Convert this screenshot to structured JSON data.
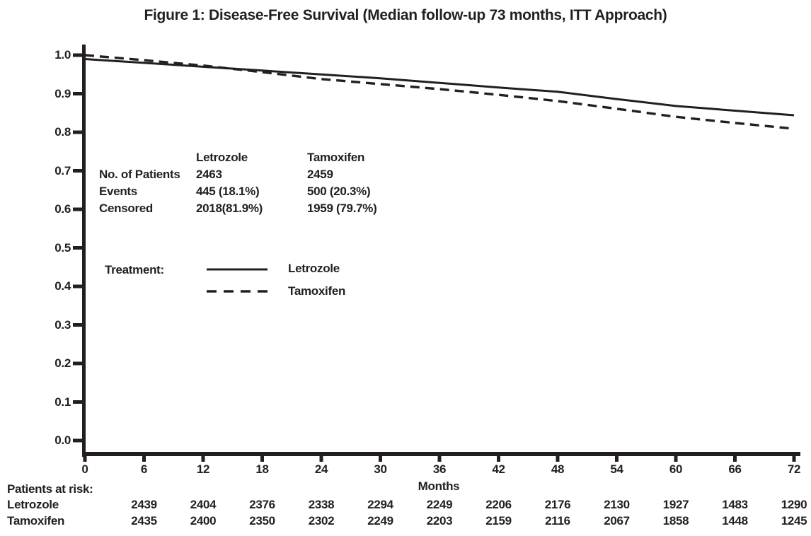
{
  "title": "Figure 1: Disease-Free Survival (Median follow-up 73 months, ITT Approach)",
  "colors": {
    "ink": "#231f20",
    "background": "#ffffff"
  },
  "chart_data": {
    "type": "line",
    "title": "Figure 1: Disease-Free Survival (Median follow-up 73 months, ITT Approach)",
    "xlabel": "Months",
    "ylabel": "",
    "xlim": [
      0,
      72
    ],
    "ylim": [
      0.0,
      1.0
    ],
    "grid": false,
    "legend_position": "inside-left-middle",
    "x_ticks": [
      0,
      6,
      12,
      18,
      24,
      30,
      36,
      42,
      48,
      54,
      60,
      66,
      72
    ],
    "y_ticks": [
      "1.0",
      "0.9",
      "0.8",
      "0.7",
      "0.6",
      "0.5",
      "0.4",
      "0.3",
      "0.2",
      "0.1",
      "0.0"
    ],
    "x": [
      0,
      6,
      12,
      18,
      24,
      30,
      36,
      42,
      48,
      54,
      60,
      66,
      72
    ],
    "series": [
      {
        "name": "Letrozole",
        "style": "solid",
        "values": [
          0.99,
          0.98,
          0.97,
          0.96,
          0.95,
          0.94,
          0.928,
          0.916,
          0.905,
          0.886,
          0.868,
          0.856,
          0.844
        ]
      },
      {
        "name": "Tamoxifen",
        "style": "dashed",
        "values": [
          1.0,
          0.987,
          0.973,
          0.956,
          0.938,
          0.925,
          0.912,
          0.897,
          0.881,
          0.861,
          0.84,
          0.824,
          0.809
        ]
      }
    ]
  },
  "stats_table": {
    "columns": [
      "Letrozole",
      "Tamoxifen"
    ],
    "rows": [
      {
        "label": "No. of Patients",
        "values": [
          "2463",
          "2459"
        ]
      },
      {
        "label": "Events",
        "values": [
          "445 (18.1%)",
          "500 (20.3%)"
        ]
      },
      {
        "label": "Censored",
        "values": [
          "2018(81.9%)",
          "1959 (79.7%)"
        ]
      }
    ]
  },
  "legend": {
    "label": "Treatment:",
    "items": [
      {
        "name": "Letrozole",
        "style": "solid"
      },
      {
        "name": "Tamoxifen",
        "style": "dashed"
      }
    ]
  },
  "risk_table": {
    "title": "Patients at risk:",
    "months": [
      6,
      12,
      18,
      24,
      30,
      36,
      42,
      48,
      54,
      60,
      66,
      72
    ],
    "rows": [
      {
        "label": "Letrozole",
        "values": [
          "2439",
          "2404",
          "2376",
          "2338",
          "2294",
          "2249",
          "2206",
          "2176",
          "2130",
          "1927",
          "1483",
          "1290"
        ]
      },
      {
        "label": "Tamoxifen",
        "values": [
          "2435",
          "2400",
          "2350",
          "2302",
          "2249",
          "2203",
          "2159",
          "2116",
          "2067",
          "1858",
          "1448",
          "1245"
        ]
      }
    ]
  }
}
